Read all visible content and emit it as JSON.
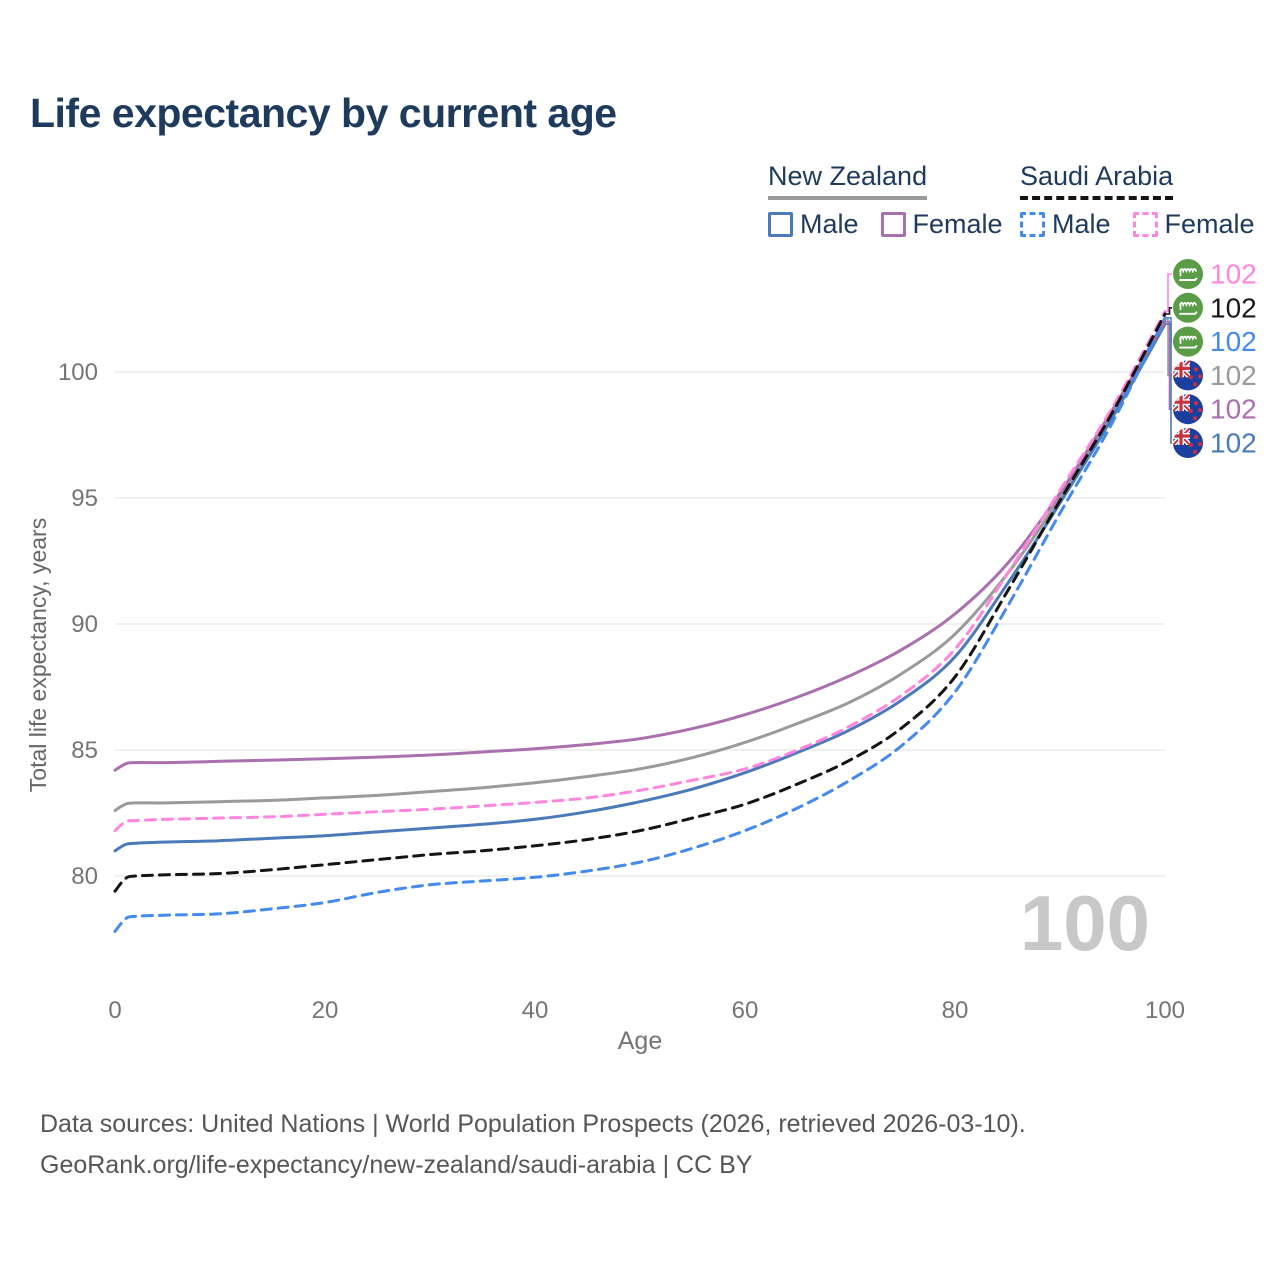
{
  "title": "Life expectancy by current age",
  "legend": {
    "groups": [
      {
        "country": "New Zealand",
        "line_style": "solid",
        "underline_color": "#9a9a9a",
        "items": [
          {
            "label": "Male",
            "color": "#4a7ab9",
            "dashed": false
          },
          {
            "label": "Female",
            "color": "#a96fae",
            "dashed": false
          }
        ]
      },
      {
        "country": "Saudi Arabia",
        "line_style": "dashed",
        "underline_color": "#141414",
        "items": [
          {
            "label": "Male",
            "color": "#4389ee",
            "dashed": true
          },
          {
            "label": "Female",
            "color": "#ff86de",
            "dashed": true
          }
        ]
      }
    ]
  },
  "watermark_age": "100",
  "footer": {
    "line1": "Data sources: United Nations | World Population Prospects (2026, retrieved 2026-03-10).",
    "line2": "GeoRank.org/life-expectancy/new-zealand/saudi-arabia | CC BY"
  },
  "chart_data": {
    "type": "line",
    "title": "Life expectancy by current age",
    "xlabel": "Age",
    "ylabel": "Total life expectancy, years",
    "x_ticks": [
      0,
      20,
      40,
      60,
      80,
      100
    ],
    "y_ticks": [
      80,
      85,
      90,
      95,
      100
    ],
    "xlim": [
      0,
      100
    ],
    "ylim": [
      77,
      103
    ],
    "grid": "horizontal-only",
    "legend_position": "top-right",
    "ages": [
      0,
      1,
      2,
      5,
      10,
      15,
      20,
      25,
      30,
      35,
      40,
      45,
      50,
      55,
      60,
      65,
      70,
      75,
      80,
      85,
      90,
      95,
      100
    ],
    "series": [
      {
        "id": "nz-both",
        "name": "New Zealand Both sexes",
        "country": "New Zealand",
        "sex": "Both",
        "color": "#9a9a9a",
        "line_style": "solid",
        "flag": "nz",
        "end_label": "102",
        "values": [
          82.6,
          82.85,
          82.9,
          82.9,
          82.95,
          83.0,
          83.1,
          83.2,
          83.35,
          83.5,
          83.7,
          83.95,
          84.25,
          84.7,
          85.3,
          86.05,
          86.9,
          88.05,
          89.6,
          92.0,
          95.0,
          98.35,
          102.1
        ]
      },
      {
        "id": "nz-male",
        "name": "New Zealand Male",
        "country": "New Zealand",
        "sex": "Male",
        "color": "#4a7ab9",
        "line_style": "solid",
        "flag": "nz",
        "end_label": "102",
        "values": [
          81.0,
          81.25,
          81.3,
          81.35,
          81.4,
          81.5,
          81.6,
          81.75,
          81.9,
          82.05,
          82.25,
          82.55,
          82.95,
          83.45,
          84.1,
          84.9,
          85.8,
          87.0,
          88.7,
          91.6,
          94.8,
          98.2,
          101.9
        ]
      },
      {
        "id": "nz-female",
        "name": "New Zealand Female",
        "country": "New Zealand",
        "sex": "Female",
        "color": "#a96fae",
        "line_style": "solid",
        "flag": "nz",
        "end_label": "102",
        "values": [
          84.2,
          84.45,
          84.5,
          84.5,
          84.55,
          84.6,
          84.65,
          84.72,
          84.8,
          84.92,
          85.05,
          85.22,
          85.45,
          85.85,
          86.4,
          87.1,
          87.95,
          89.0,
          90.4,
          92.4,
          95.2,
          98.5,
          102.0
        ]
      },
      {
        "id": "sa-male",
        "name": "Saudi Arabia Male",
        "country": "Saudi Arabia",
        "sex": "Male",
        "color": "#4389ee",
        "line_style": "dashed",
        "flag": "sa",
        "end_label": "102",
        "values": [
          77.8,
          78.3,
          78.4,
          78.45,
          78.5,
          78.7,
          78.95,
          79.35,
          79.65,
          79.8,
          79.95,
          80.2,
          80.55,
          81.1,
          81.8,
          82.7,
          83.8,
          85.2,
          87.3,
          90.7,
          94.4,
          98.0,
          102.15
        ]
      },
      {
        "id": "sa-female",
        "name": "Saudi Arabia Female",
        "country": "Saudi Arabia",
        "sex": "Female",
        "color": "#ff86de",
        "line_style": "dashed",
        "flag": "sa",
        "end_label": "102",
        "values": [
          81.8,
          82.15,
          82.2,
          82.25,
          82.3,
          82.35,
          82.45,
          82.55,
          82.65,
          82.78,
          82.92,
          83.1,
          83.4,
          83.8,
          84.25,
          85.0,
          85.95,
          87.2,
          89.0,
          92.0,
          95.3,
          98.6,
          102.4
        ]
      },
      {
        "id": "sa-both",
        "name": "Saudi Arabia Both sexes",
        "country": "Saudi Arabia",
        "sex": "Both",
        "color": "#141414",
        "line_style": "dashed",
        "flag": "sa",
        "end_label": "102",
        "values": [
          79.4,
          79.9,
          80.0,
          80.05,
          80.1,
          80.25,
          80.45,
          80.65,
          80.85,
          81.0,
          81.2,
          81.45,
          81.8,
          82.3,
          82.85,
          83.65,
          84.6,
          85.9,
          87.9,
          91.3,
          94.9,
          98.4,
          102.3
        ]
      }
    ],
    "end_labels": [
      {
        "series_id": "sa-female",
        "flag": "sa",
        "text": "102",
        "color": "#ff86de"
      },
      {
        "series_id": "sa-both",
        "flag": "sa",
        "text": "102",
        "color": "#1a1a1a"
      },
      {
        "series_id": "sa-male",
        "flag": "sa",
        "text": "102",
        "color": "#4389ee"
      },
      {
        "series_id": "nz-both",
        "flag": "nz",
        "text": "102",
        "color": "#9a9a9a"
      },
      {
        "series_id": "nz-female",
        "flag": "nz",
        "text": "102",
        "color": "#a96fae"
      },
      {
        "series_id": "nz-male",
        "flag": "nz",
        "text": "102",
        "color": "#4a7ab9"
      }
    ],
    "flag_colors": {
      "sa_green": "#5b9c47",
      "nz_blue": "#1b3f9e",
      "flag_red": "#c8313e"
    },
    "axis_text_color": "#757575",
    "grid_color": "#ebebeb",
    "watermark_color": "#c8c8c8"
  }
}
